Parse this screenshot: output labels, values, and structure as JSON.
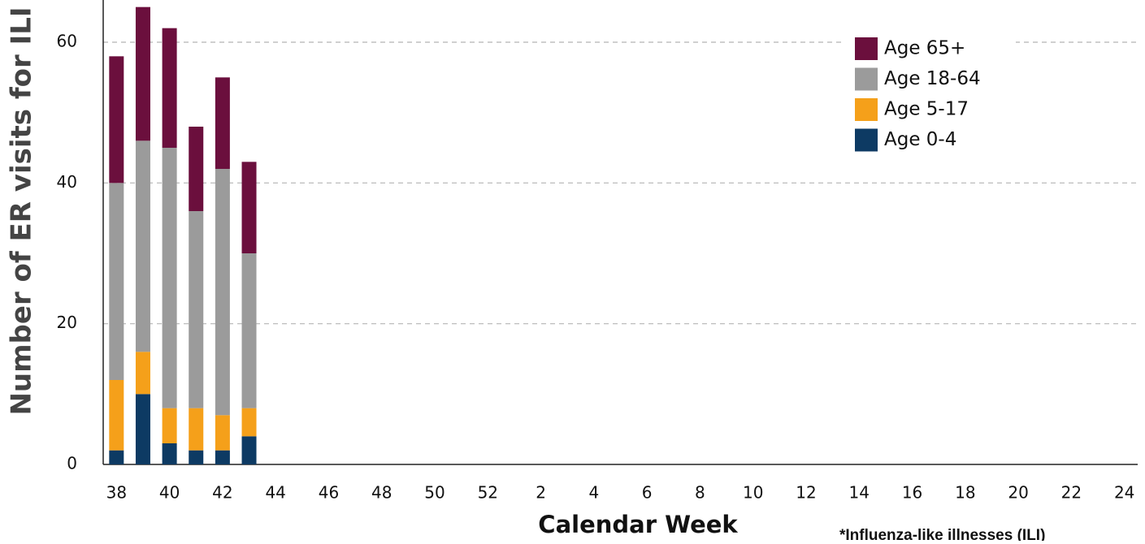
{
  "chart_data": {
    "type": "stacked_bar",
    "xlabel": "Calendar Week",
    "ylabel": "Number of ER visits for ILI",
    "footnote": "*Influenza-like illnesses (ILI)",
    "categories": [
      "38",
      null,
      "40",
      null,
      "42",
      null,
      "44",
      null,
      "46",
      null,
      "48",
      null,
      "50",
      null,
      "52",
      null,
      "2",
      null,
      "4",
      null,
      "6",
      null,
      "8",
      null,
      "10",
      null,
      "12",
      null,
      "14",
      null,
      "16",
      null,
      "18",
      null,
      "20",
      null,
      "22",
      null,
      "24"
    ],
    "series": [
      {
        "name": "Age 0-4",
        "color": "#0d3a63",
        "values": [
          2,
          10,
          3,
          2,
          2,
          4,
          null,
          null,
          null,
          null,
          null,
          null,
          null,
          null,
          null,
          null,
          null,
          null,
          null,
          null,
          null,
          null,
          null,
          null,
          null,
          null,
          null,
          null,
          null,
          null,
          null,
          null,
          null,
          null,
          null,
          null,
          null,
          null,
          null
        ]
      },
      {
        "name": "Age 5-17",
        "color": "#f5a01a",
        "values": [
          10,
          6,
          5,
          6,
          5,
          4,
          null,
          null,
          null,
          null,
          null,
          null,
          null,
          null,
          null,
          null,
          null,
          null,
          null,
          null,
          null,
          null,
          null,
          null,
          null,
          null,
          null,
          null,
          null,
          null,
          null,
          null,
          null,
          null,
          null,
          null,
          null,
          null,
          null
        ]
      },
      {
        "name": "Age 18-64",
        "color": "#9b9b9b",
        "values": [
          28,
          30,
          37,
          28,
          35,
          22,
          null,
          null,
          null,
          null,
          null,
          null,
          null,
          null,
          null,
          null,
          null,
          null,
          null,
          null,
          null,
          null,
          null,
          null,
          null,
          null,
          null,
          null,
          null,
          null,
          null,
          null,
          null,
          null,
          null,
          null,
          null,
          null,
          null
        ]
      },
      {
        "name": "Age 65+",
        "color": "#6b0f3d",
        "values": [
          18,
          19,
          17,
          12,
          13,
          13,
          null,
          null,
          null,
          null,
          null,
          null,
          null,
          null,
          null,
          null,
          null,
          null,
          null,
          null,
          null,
          null,
          null,
          null,
          null,
          null,
          null,
          null,
          null,
          null,
          null,
          null,
          null,
          null,
          null,
          null,
          null,
          null,
          null
        ]
      }
    ],
    "ylim": [
      0,
      66
    ],
    "yticks": [
      0,
      20,
      40,
      60
    ],
    "grid": true,
    "legend": "upper right"
  }
}
